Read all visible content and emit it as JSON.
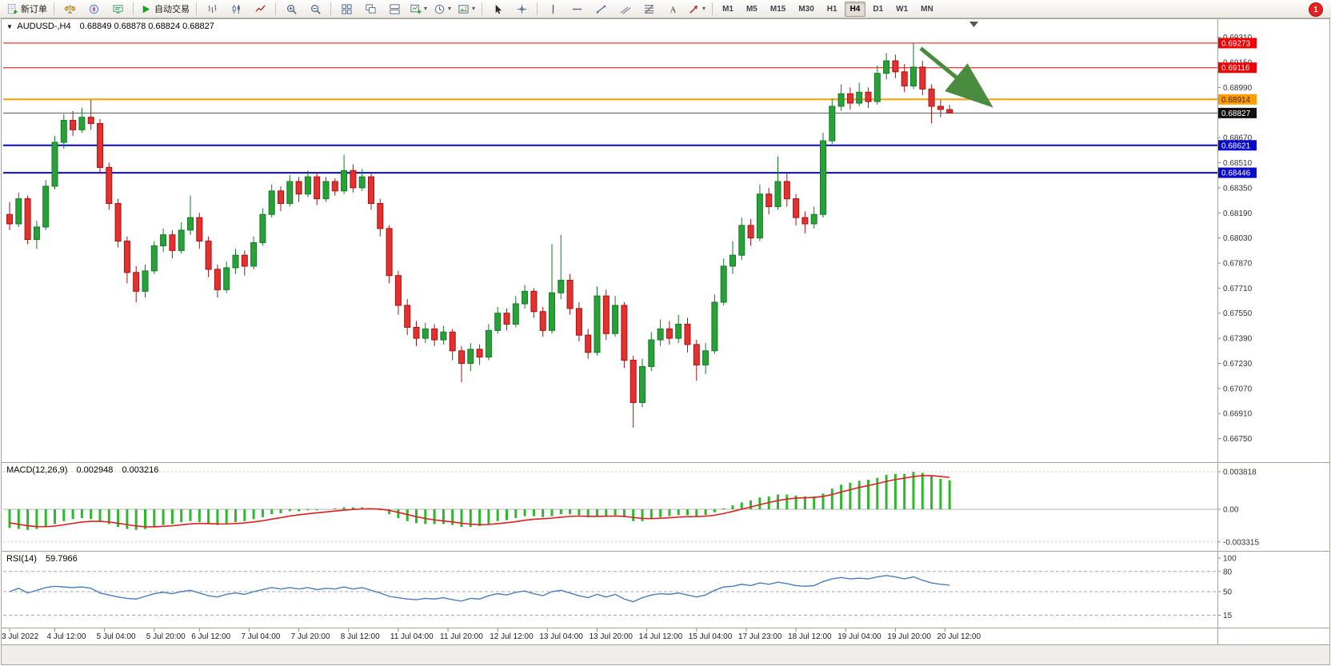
{
  "window": {
    "notification_badge": "1"
  },
  "toolbar": {
    "groups": [
      {
        "items": [
          {
            "name": "new-order-button",
            "icon": "new-order-icon",
            "label": "新订单"
          }
        ]
      },
      {
        "items": [
          {
            "name": "market-watch-button",
            "icon": "market-watch-icon"
          },
          {
            "name": "navigator-button",
            "icon": "navigator-icon"
          },
          {
            "name": "terminal-button",
            "icon": "terminal-icon"
          }
        ]
      },
      {
        "items": [
          {
            "name": "autotrading-button",
            "icon": "play-icon",
            "label": "自动交易"
          }
        ]
      },
      {
        "items": [
          {
            "name": "bar-chart-button",
            "icon": "bar-chart-icon"
          },
          {
            "name": "candlestick-chart-button",
            "icon": "candlestick-chart-icon"
          },
          {
            "name": "line-chart-button",
            "icon": "line-chart-icon"
          }
        ]
      },
      {
        "items": [
          {
            "name": "zoom-in-button",
            "icon": "zoom-in-icon"
          },
          {
            "name": "zoom-out-button",
            "icon": "zoom-out-icon"
          }
        ]
      },
      {
        "items": [
          {
            "name": "tile-windows-button",
            "icon": "tile-windows-icon"
          },
          {
            "name": "cascade-windows-button",
            "icon": "cascade-windows-icon"
          },
          {
            "name": "arrange-windows-button",
            "icon": "arrange-windows-icon"
          },
          {
            "name": "new-chart-button",
            "icon": "new-chart-icon",
            "dropdown": true
          },
          {
            "name": "periods-button",
            "icon": "period-icon",
            "dropdown": true
          },
          {
            "name": "templates-button",
            "icon": "template-icon",
            "dropdown": true
          }
        ]
      },
      {
        "items": [
          {
            "name": "cursor-button",
            "icon": "cursor-icon"
          },
          {
            "name": "crosshair-button",
            "icon": "crosshair-icon"
          }
        ]
      },
      {
        "items": [
          {
            "name": "vertical-line-button",
            "icon": "vertical-line-icon"
          },
          {
            "name": "horizontal-line-button",
            "icon": "horizontal-line-icon"
          },
          {
            "name": "trendline-button",
            "icon": "trendline-icon"
          },
          {
            "name": "channel-button",
            "icon": "channel-icon"
          },
          {
            "name": "fibonacci-button",
            "icon": "fibonacci-icon"
          },
          {
            "name": "text-button",
            "icon": "text-icon"
          },
          {
            "name": "arrows-button",
            "icon": "arrows-icon",
            "dropdown": true
          }
        ]
      }
    ],
    "timeframes": [
      "M1",
      "M5",
      "M15",
      "M30",
      "H1",
      "H4",
      "D1",
      "W1",
      "MN"
    ],
    "active_timeframe": "H4"
  },
  "chart": {
    "collapse_arrow": "▼",
    "symbol_period": "AUDUSD-,H4",
    "ohlc_text": "0.68849 0.68878 0.68824 0.68827"
  },
  "chart_data": {
    "type": "candlestick",
    "symbol": "AUDUSD",
    "period": "H4",
    "title": "AUDUSD-,H4",
    "current_bar": {
      "open": 0.68849,
      "high": 0.68878,
      "low": 0.68824,
      "close": 0.68827
    },
    "price_axis": {
      "top": 0.69395,
      "bottom": 0.666,
      "ticks": [
        "0.69310",
        "0.69150",
        "0.68990",
        "0.68830",
        "0.68670",
        "0.68510",
        "0.68350",
        "0.68190",
        "0.68030",
        "0.67870",
        "0.67710",
        "0.67550",
        "0.67390",
        "0.67230",
        "0.67070",
        "0.66910",
        "0.66750"
      ]
    },
    "levels": [
      {
        "price": 0.69273,
        "label": "0.69273",
        "color": "#f00000",
        "width": 1,
        "badge_bg": "#f00000",
        "badge_fg": "#ffffff"
      },
      {
        "price": 0.69116,
        "label": "0.69116",
        "color": "#f00000",
        "width": 1,
        "badge_bg": "#f00000",
        "badge_fg": "#ffffff"
      },
      {
        "price": 0.68914,
        "label": "0.68914",
        "color": "#ff9c00",
        "width": 2,
        "badge_bg": "#ff9c00",
        "badge_fg": "#3a2400"
      },
      {
        "price": 0.68621,
        "label": "0.68621",
        "color": "#0a0acc",
        "width": 2,
        "badge_bg": "#0a0acc",
        "badge_fg": "#ffffff"
      },
      {
        "price": 0.68446,
        "label": "0.68446",
        "color": "#0a0acc",
        "width": 2,
        "badge_bg": "#0a0acc",
        "badge_fg": "#ffffff"
      }
    ],
    "current_price_line": {
      "price": 0.68827,
      "label": "0.68827",
      "color": "#555555",
      "badge_bg": "#111111",
      "badge_fg": "#ffffff"
    },
    "trend_arrow": {
      "from_index": 100.8,
      "from_price": 0.6924,
      "to_index": 107.8,
      "to_price": 0.6891,
      "color": "#4a8c3f"
    },
    "colors": {
      "up": "#28a138",
      "up_border": "#157a26",
      "down": "#e53030",
      "down_border": "#aa1111",
      "background": "#ffffff",
      "axis_text": "#333333"
    },
    "candles": [
      [
        0.6818,
        0.6826,
        0.6808,
        0.6812
      ],
      [
        0.6812,
        0.6832,
        0.681,
        0.6828
      ],
      [
        0.6828,
        0.683,
        0.6799,
        0.6802
      ],
      [
        0.6802,
        0.6814,
        0.6796,
        0.681
      ],
      [
        0.681,
        0.684,
        0.6808,
        0.6836
      ],
      [
        0.6836,
        0.6868,
        0.6834,
        0.6864
      ],
      [
        0.6864,
        0.6882,
        0.686,
        0.6878
      ],
      [
        0.6878,
        0.6884,
        0.6868,
        0.6872
      ],
      [
        0.6872,
        0.6886,
        0.687,
        0.688
      ],
      [
        0.688,
        0.68912,
        0.6872,
        0.6876
      ],
      [
        0.6876,
        0.6879,
        0.6844,
        0.6848
      ],
      [
        0.6848,
        0.6851,
        0.6821,
        0.6825
      ],
      [
        0.6825,
        0.6828,
        0.6797,
        0.6801
      ],
      [
        0.6801,
        0.6804,
        0.6774,
        0.6781
      ],
      [
        0.6781,
        0.6785,
        0.6762,
        0.6769
      ],
      [
        0.6769,
        0.6786,
        0.6765,
        0.6782
      ],
      [
        0.6782,
        0.6801,
        0.678,
        0.6798
      ],
      [
        0.6798,
        0.6809,
        0.6794,
        0.6805
      ],
      [
        0.6805,
        0.6808,
        0.679,
        0.6795
      ],
      [
        0.6795,
        0.6813,
        0.6793,
        0.6808
      ],
      [
        0.6808,
        0.683,
        0.6805,
        0.6816
      ],
      [
        0.6816,
        0.6819,
        0.6796,
        0.6801
      ],
      [
        0.6801,
        0.6804,
        0.6778,
        0.6783
      ],
      [
        0.6783,
        0.6786,
        0.6765,
        0.677
      ],
      [
        0.677,
        0.6788,
        0.6768,
        0.6784
      ],
      [
        0.6784,
        0.6796,
        0.678,
        0.6792
      ],
      [
        0.6792,
        0.6795,
        0.6779,
        0.6785
      ],
      [
        0.6785,
        0.6804,
        0.6783,
        0.68
      ],
      [
        0.68,
        0.6822,
        0.6798,
        0.6818
      ],
      [
        0.6818,
        0.6837,
        0.6816,
        0.6833
      ],
      [
        0.6833,
        0.6836,
        0.682,
        0.6825
      ],
      [
        0.6825,
        0.6843,
        0.6823,
        0.6839
      ],
      [
        0.6839,
        0.6842,
        0.6826,
        0.6831
      ],
      [
        0.6831,
        0.6846,
        0.6829,
        0.6842
      ],
      [
        0.6842,
        0.6845,
        0.6824,
        0.6828
      ],
      [
        0.6828,
        0.6842,
        0.6826,
        0.6839
      ],
      [
        0.6839,
        0.6841,
        0.683,
        0.6833
      ],
      [
        0.6833,
        0.6856,
        0.6831,
        0.6846
      ],
      [
        0.6846,
        0.685,
        0.6832,
        0.6835
      ],
      [
        0.6835,
        0.6847,
        0.6833,
        0.6842
      ],
      [
        0.6842,
        0.6844,
        0.6821,
        0.6825
      ],
      [
        0.6825,
        0.6828,
        0.6804,
        0.6809
      ],
      [
        0.6809,
        0.6811,
        0.6774,
        0.6779
      ],
      [
        0.6779,
        0.6782,
        0.6754,
        0.676
      ],
      [
        0.676,
        0.6764,
        0.6741,
        0.6746
      ],
      [
        0.6746,
        0.675,
        0.6734,
        0.6739
      ],
      [
        0.6739,
        0.6749,
        0.6736,
        0.6745
      ],
      [
        0.6745,
        0.6748,
        0.6734,
        0.6738
      ],
      [
        0.6738,
        0.6747,
        0.6735,
        0.6743
      ],
      [
        0.6743,
        0.6745,
        0.6725,
        0.6731
      ],
      [
        0.6731,
        0.6734,
        0.6711,
        0.6723
      ],
      [
        0.6723,
        0.6736,
        0.6718,
        0.6732
      ],
      [
        0.6732,
        0.6735,
        0.6722,
        0.6727
      ],
      [
        0.6727,
        0.6748,
        0.6725,
        0.6744
      ],
      [
        0.6744,
        0.6759,
        0.6742,
        0.6755
      ],
      [
        0.6755,
        0.6758,
        0.6744,
        0.6748
      ],
      [
        0.6748,
        0.6766,
        0.6746,
        0.6761
      ],
      [
        0.6761,
        0.6773,
        0.6758,
        0.6769
      ],
      [
        0.6769,
        0.6771,
        0.6752,
        0.6756
      ],
      [
        0.6756,
        0.6759,
        0.674,
        0.6744
      ],
      [
        0.6744,
        0.6799,
        0.6742,
        0.6768
      ],
      [
        0.6768,
        0.6805,
        0.6764,
        0.6776
      ],
      [
        0.6776,
        0.678,
        0.6754,
        0.6758
      ],
      [
        0.6758,
        0.6762,
        0.6737,
        0.6741
      ],
      [
        0.6741,
        0.6745,
        0.6726,
        0.673
      ],
      [
        0.673,
        0.6772,
        0.6728,
        0.6766
      ],
      [
        0.6766,
        0.677,
        0.6738,
        0.6742
      ],
      [
        0.6742,
        0.6766,
        0.674,
        0.676
      ],
      [
        0.676,
        0.6762,
        0.672,
        0.6725
      ],
      [
        0.6725,
        0.6728,
        0.6682,
        0.6698
      ],
      [
        0.6698,
        0.6726,
        0.6695,
        0.6721
      ],
      [
        0.6721,
        0.6743,
        0.6718,
        0.6738
      ],
      [
        0.6738,
        0.6751,
        0.6734,
        0.6745
      ],
      [
        0.6745,
        0.675,
        0.6735,
        0.6739
      ],
      [
        0.6739,
        0.6754,
        0.6736,
        0.6748
      ],
      [
        0.6748,
        0.6752,
        0.673,
        0.6735
      ],
      [
        0.6735,
        0.6738,
        0.6712,
        0.6722
      ],
      [
        0.6722,
        0.6736,
        0.6716,
        0.6731
      ],
      [
        0.6731,
        0.6767,
        0.6729,
        0.6762
      ],
      [
        0.6762,
        0.679,
        0.676,
        0.6785
      ],
      [
        0.6785,
        0.6801,
        0.678,
        0.6792
      ],
      [
        0.6792,
        0.6816,
        0.6789,
        0.6811
      ],
      [
        0.6811,
        0.6815,
        0.6798,
        0.6803
      ],
      [
        0.6803,
        0.6837,
        0.6801,
        0.6831
      ],
      [
        0.6831,
        0.6835,
        0.6818,
        0.6823
      ],
      [
        0.6823,
        0.6855,
        0.6821,
        0.6839
      ],
      [
        0.6839,
        0.6844,
        0.6823,
        0.6828
      ],
      [
        0.6828,
        0.6831,
        0.6811,
        0.6816
      ],
      [
        0.6816,
        0.682,
        0.6806,
        0.6812
      ],
      [
        0.6812,
        0.6823,
        0.6809,
        0.6818
      ],
      [
        0.6818,
        0.687,
        0.6816,
        0.6865
      ],
      [
        0.6865,
        0.6892,
        0.6863,
        0.6887
      ],
      [
        0.6887,
        0.6901,
        0.6884,
        0.6895
      ],
      [
        0.6895,
        0.6899,
        0.6885,
        0.6889
      ],
      [
        0.6889,
        0.6902,
        0.6887,
        0.6896
      ],
      [
        0.6896,
        0.6899,
        0.6886,
        0.689
      ],
      [
        0.689,
        0.6913,
        0.6888,
        0.6908
      ],
      [
        0.6908,
        0.6921,
        0.6904,
        0.6916
      ],
      [
        0.6916,
        0.692,
        0.6905,
        0.6909
      ],
      [
        0.6909,
        0.6914,
        0.6896,
        0.69
      ],
      [
        0.69,
        0.69273,
        0.6898,
        0.6912
      ],
      [
        0.6912,
        0.6916,
        0.6894,
        0.6898
      ],
      [
        0.6898,
        0.6901,
        0.6876,
        0.6887
      ],
      [
        0.6887,
        0.6891,
        0.688,
        0.6885
      ],
      [
        0.68849,
        0.68878,
        0.68824,
        0.68827
      ]
    ],
    "time_labels": [
      {
        "label": "3 Jul 2022",
        "index": 0
      },
      {
        "label": "4 Jul 12:00",
        "index": 5
      },
      {
        "label": "5 Jul 04:00",
        "index": 10.5
      },
      {
        "label": "5 Jul 20:00",
        "index": 16
      },
      {
        "label": "6 Jul 12:00",
        "index": 21
      },
      {
        "label": "7 Jul 04:00",
        "index": 26.5
      },
      {
        "label": "7 Jul 20:00",
        "index": 32
      },
      {
        "label": "8 Jul 12:00",
        "index": 37.5
      },
      {
        "label": "11 Jul 04:00",
        "index": 43
      },
      {
        "label": "11 Jul 20:00",
        "index": 48.5
      },
      {
        "label": "12 Jul 12:00",
        "index": 54
      },
      {
        "label": "13 Jul 04:00",
        "index": 59.5
      },
      {
        "label": "13 Jul 20:00",
        "index": 65
      },
      {
        "label": "14 Jul 12:00",
        "index": 70.5
      },
      {
        "label": "15 Jul 04:00",
        "index": 76
      },
      {
        "label": "17 Jul 23:00",
        "index": 81.5
      },
      {
        "label": "18 Jul 12:00",
        "index": 87
      },
      {
        "label": "19 Jul 04:00",
        "index": 92.5
      },
      {
        "label": "19 Jul 20:00",
        "index": 98
      },
      {
        "label": "20 Jul 12:00",
        "index": 103.5
      }
    ],
    "macd": {
      "name": "MACD(12,26,9)",
      "value_main": "0.002948",
      "value_signal": "0.003216",
      "scale": {
        "max": 0.003818,
        "min": -0.003315,
        "labels": [
          "0.003818",
          "0.00",
          "-0.003315"
        ]
      },
      "colors": {
        "histogram": "#2db82d",
        "signal": "#e02020"
      },
      "histogram": [
        -0.0019,
        -0.002,
        -0.0021,
        -0.002,
        -0.0018,
        -0.0015,
        -0.0012,
        -0.001,
        -0.0009,
        -0.001,
        -0.0012,
        -0.0015,
        -0.0018,
        -0.002,
        -0.0021,
        -0.002,
        -0.0018,
        -0.0016,
        -0.0015,
        -0.0013,
        -0.0012,
        -0.0013,
        -0.0015,
        -0.0016,
        -0.0015,
        -0.0013,
        -0.0012,
        -0.001,
        -0.0008,
        -0.0005,
        -0.0004,
        -0.0002,
        -0.0002,
        -0.0001,
        -0.0001,
        0,
        0.0001,
        0.0002,
        0.0002,
        0.0002,
        0.0001,
        -0.0001,
        -0.0005,
        -0.0009,
        -0.0012,
        -0.0014,
        -0.0015,
        -0.0015,
        -0.0015,
        -0.0016,
        -0.0018,
        -0.0018,
        -0.0017,
        -0.0015,
        -0.0012,
        -0.0011,
        -0.0009,
        -0.0007,
        -0.0007,
        -0.0008,
        -0.0007,
        -0.0005,
        -0.0005,
        -0.0006,
        -0.0008,
        -0.0007,
        -0.0007,
        -0.0006,
        -0.0008,
        -0.0012,
        -0.0012,
        -0.001,
        -0.0008,
        -0.0007,
        -0.0006,
        -0.0006,
        -0.0007,
        -0.0006,
        -0.0003,
        0.0001,
        0.0004,
        0.0007,
        0.0009,
        0.0012,
        0.0013,
        0.0015,
        0.0015,
        0.0014,
        0.0013,
        0.0013,
        0.0016,
        0.0021,
        0.0025,
        0.0027,
        0.0029,
        0.003,
        0.0032,
        0.0035,
        0.0036,
        0.0036,
        0.0038,
        0.0037,
        0.0034,
        0.0031,
        0.002948
      ]
    },
    "rsi": {
      "name": "RSI(14)",
      "value": "59.7966",
      "color": "#4a7ebb",
      "levels": [
        80,
        50,
        15
      ],
      "scale_labels": [
        "100",
        "80",
        "50",
        "15"
      ],
      "values": [
        50,
        55,
        48,
        52,
        56,
        58,
        57,
        56,
        57,
        55,
        48,
        45,
        42,
        40,
        39,
        43,
        47,
        49,
        47,
        50,
        52,
        48,
        44,
        42,
        46,
        48,
        46,
        50,
        53,
        56,
        54,
        56,
        54,
        56,
        53,
        55,
        54,
        57,
        54,
        56,
        52,
        48,
        43,
        41,
        39,
        38,
        40,
        39,
        41,
        38,
        36,
        40,
        39,
        44,
        47,
        45,
        49,
        51,
        47,
        44,
        50,
        52,
        48,
        44,
        41,
        46,
        42,
        46,
        39,
        35,
        41,
        45,
        47,
        46,
        48,
        45,
        42,
        45,
        52,
        57,
        58,
        61,
        59,
        63,
        61,
        64,
        62,
        59,
        58,
        59,
        65,
        69,
        71,
        69,
        70,
        69,
        72,
        74,
        72,
        69,
        72,
        67,
        63,
        61,
        59.8
      ]
    }
  }
}
